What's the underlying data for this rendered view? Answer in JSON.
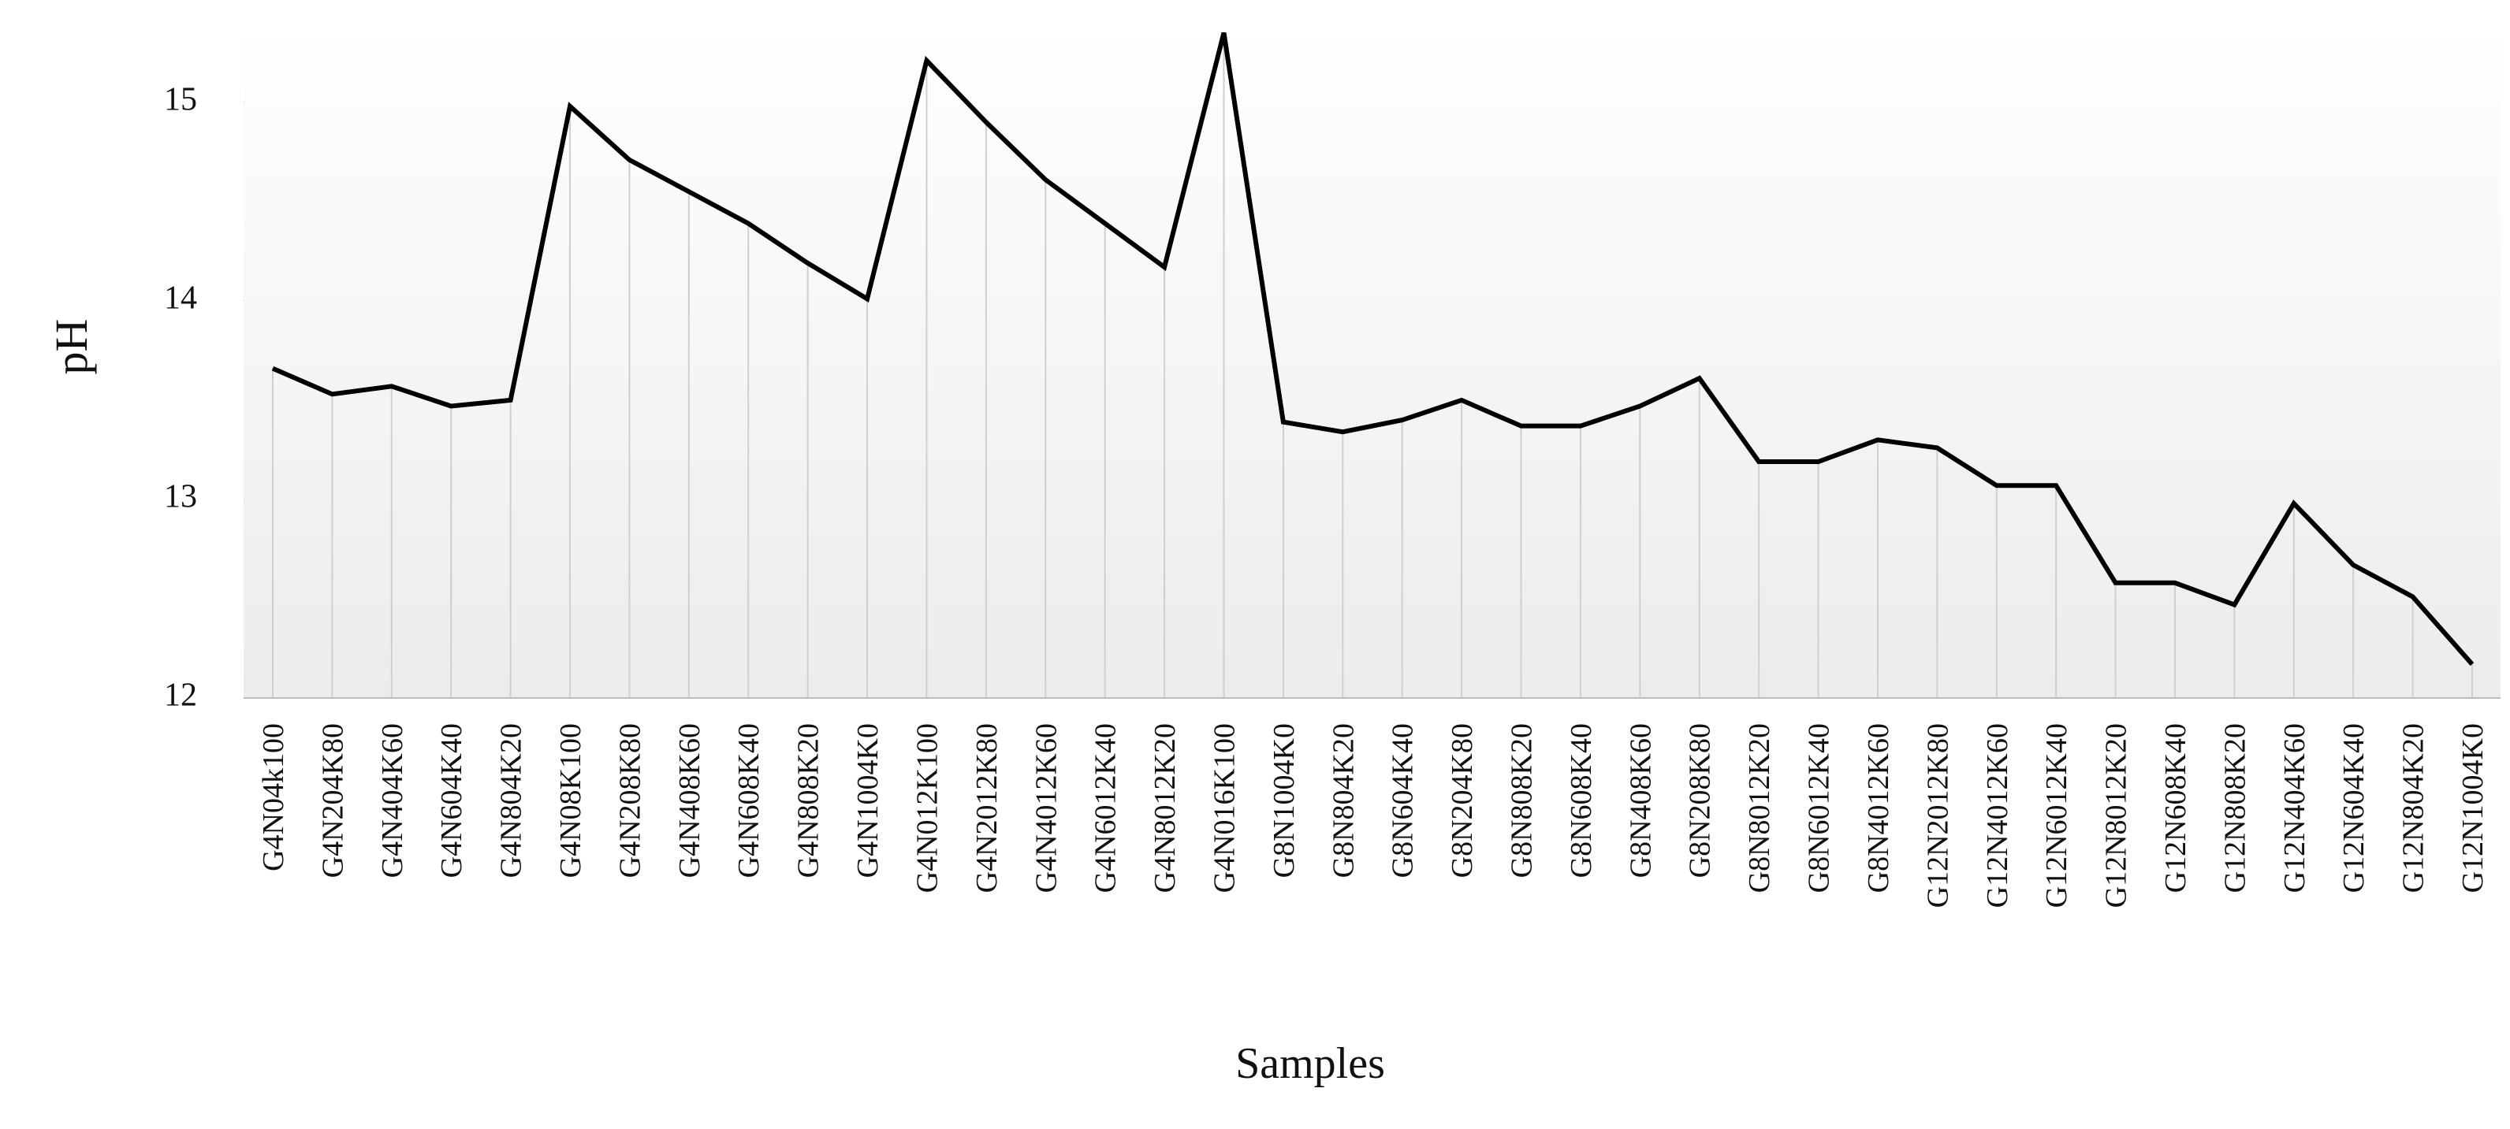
{
  "chart_data": {
    "type": "line",
    "x_label": "Samples",
    "y_label": "pH",
    "categories": [
      "G4N04k100",
      "G4N204K80",
      "G4N404K60",
      "G4N604K40",
      "G4N804K20",
      "G4N08K100",
      "G4N208K80",
      "G4N408K60",
      "G4N608K40",
      "G4N808K20",
      "G4N1004K0",
      "G4N012K100",
      "G4N2012K80",
      "G4N4012K60",
      "G4N6012K40",
      "G4N8012K20",
      "G4N016K100",
      "G8N1004K0",
      "G8N804K20",
      "G8N604K40",
      "G8N204K80",
      "G8N808K20",
      "G8N608K40",
      "G8N408K60",
      "G8N208K80",
      "G8N8012K20",
      "G8N6012K40",
      "G8N4012K60",
      "G12N2012K80",
      "G12N4012K60",
      "G12N6012K40",
      "G12N8012K20",
      "G12N608K40",
      "G12N808K20",
      "G12N404K60",
      "G12N604K40",
      "G12N804K20",
      "G12N1004K0"
    ],
    "values": [
      13.66,
      13.53,
      13.57,
      13.47,
      13.5,
      14.98,
      14.71,
      14.55,
      14.39,
      14.19,
      14.01,
      15.21,
      14.9,
      14.61,
      14.39,
      14.17,
      15.35,
      13.39,
      13.34,
      13.4,
      13.5,
      13.37,
      13.37,
      13.47,
      13.61,
      13.19,
      13.19,
      13.3,
      13.26,
      13.07,
      13.07,
      12.58,
      12.58,
      12.47,
      12.98,
      12.67,
      12.51,
      12.17
    ],
    "color": "#000000",
    "ylim": [
      12,
      15.4
    ],
    "yticks": [
      12,
      13,
      14,
      15
    ],
    "drop_lines": true
  }
}
